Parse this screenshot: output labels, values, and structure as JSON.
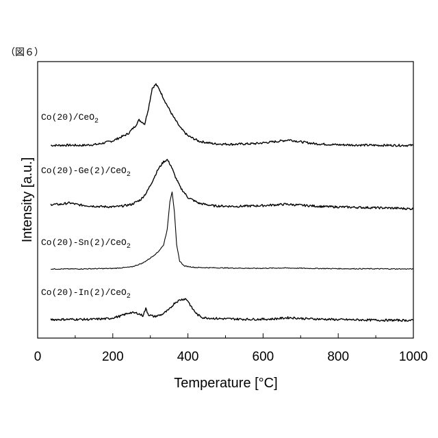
{
  "figure_label": "（図６）",
  "chart_data": {
    "type": "line",
    "xlabel": "Temperature [°C]",
    "ylabel": "Intensity [a.u.]",
    "xlim": [
      0,
      1000
    ],
    "x_ticks": [
      0,
      200,
      400,
      600,
      800,
      1000
    ],
    "y_ticks": [],
    "grid": false,
    "legend": "none",
    "series": [
      {
        "name": "Co(20)/CeO2",
        "label_main": "Co(20)/CeO",
        "label_sub": "2",
        "color": "#000000",
        "points": [
          [
            35,
            0.4
          ],
          [
            80,
            0.6
          ],
          [
            120,
            0.4
          ],
          [
            160,
            1.5
          ],
          [
            200,
            5
          ],
          [
            240,
            12
          ],
          [
            260,
            20
          ],
          [
            270,
            26
          ],
          [
            278,
            24
          ],
          [
            285,
            22
          ],
          [
            295,
            38
          ],
          [
            305,
            58
          ],
          [
            315,
            62
          ],
          [
            325,
            56
          ],
          [
            340,
            44
          ],
          [
            360,
            30
          ],
          [
            380,
            18
          ],
          [
            400,
            10
          ],
          [
            430,
            4.5
          ],
          [
            470,
            2
          ],
          [
            520,
            1.5
          ],
          [
            580,
            2.2
          ],
          [
            640,
            4.5
          ],
          [
            670,
            6
          ],
          [
            700,
            4
          ],
          [
            740,
            2
          ],
          [
            800,
            1
          ],
          [
            900,
            0.5
          ],
          [
            1000,
            0.4
          ]
        ]
      },
      {
        "name": "Co(20)-Ge(2)/CeO2",
        "label_main": "Co(20)-Ge(2)/CeO",
        "label_sub": "2",
        "color": "#000000",
        "points": [
          [
            35,
            3
          ],
          [
            60,
            3
          ],
          [
            85,
            4.5
          ],
          [
            110,
            2.5
          ],
          [
            140,
            1.5
          ],
          [
            170,
            0.8
          ],
          [
            200,
            0.5
          ],
          [
            220,
            1
          ],
          [
            250,
            3
          ],
          [
            275,
            8
          ],
          [
            290,
            15
          ],
          [
            305,
            26
          ],
          [
            320,
            38
          ],
          [
            335,
            46
          ],
          [
            345,
            48
          ],
          [
            355,
            42
          ],
          [
            365,
            32
          ],
          [
            380,
            20
          ],
          [
            400,
            10
          ],
          [
            430,
            4
          ],
          [
            470,
            1.5
          ],
          [
            530,
            1
          ],
          [
            600,
            1.8
          ],
          [
            660,
            3.2
          ],
          [
            700,
            2.2
          ],
          [
            760,
            0.8
          ],
          [
            850,
            0
          ],
          [
            950,
            -0.8
          ],
          [
            1000,
            -1.5
          ]
        ]
      },
      {
        "name": "Co(20)-Sn(2)/CeO2",
        "label_main": "Co(20)-Sn(2)/CeO",
        "label_sub": "2",
        "color": "#000000",
        "points": [
          [
            35,
            0
          ],
          [
            100,
            0
          ],
          [
            200,
            0.5
          ],
          [
            250,
            2
          ],
          [
            280,
            6
          ],
          [
            300,
            11
          ],
          [
            320,
            17
          ],
          [
            335,
            24
          ],
          [
            345,
            40
          ],
          [
            352,
            68
          ],
          [
            358,
            78
          ],
          [
            364,
            58
          ],
          [
            370,
            24
          ],
          [
            378,
            8
          ],
          [
            390,
            3
          ],
          [
            420,
            1.5
          ],
          [
            500,
            1
          ],
          [
            580,
            0.6
          ],
          [
            650,
            1
          ],
          [
            720,
            0.6
          ],
          [
            800,
            0.3
          ],
          [
            1000,
            0
          ]
        ]
      },
      {
        "name": "Co(20)-In(2)/CeO2",
        "label_main": "Co(20)-In(2)/CeO",
        "label_sub": "2",
        "color": "#000000",
        "points": [
          [
            35,
            0
          ],
          [
            90,
            0.3
          ],
          [
            140,
            0.2
          ],
          [
            190,
            1
          ],
          [
            220,
            3.5
          ],
          [
            245,
            7
          ],
          [
            265,
            6.5
          ],
          [
            280,
            4
          ],
          [
            288,
            11
          ],
          [
            295,
            5
          ],
          [
            310,
            3
          ],
          [
            330,
            5
          ],
          [
            350,
            10
          ],
          [
            365,
            17
          ],
          [
            380,
            20
          ],
          [
            393,
            21
          ],
          [
            400,
            19
          ],
          [
            410,
            12
          ],
          [
            425,
            5
          ],
          [
            440,
            2
          ],
          [
            480,
            1
          ],
          [
            560,
            0.3
          ],
          [
            620,
            0.5
          ],
          [
            670,
            2
          ],
          [
            710,
            1
          ],
          [
            800,
            0
          ],
          [
            900,
            -0.5
          ],
          [
            1000,
            -0.8
          ]
        ]
      }
    ]
  }
}
